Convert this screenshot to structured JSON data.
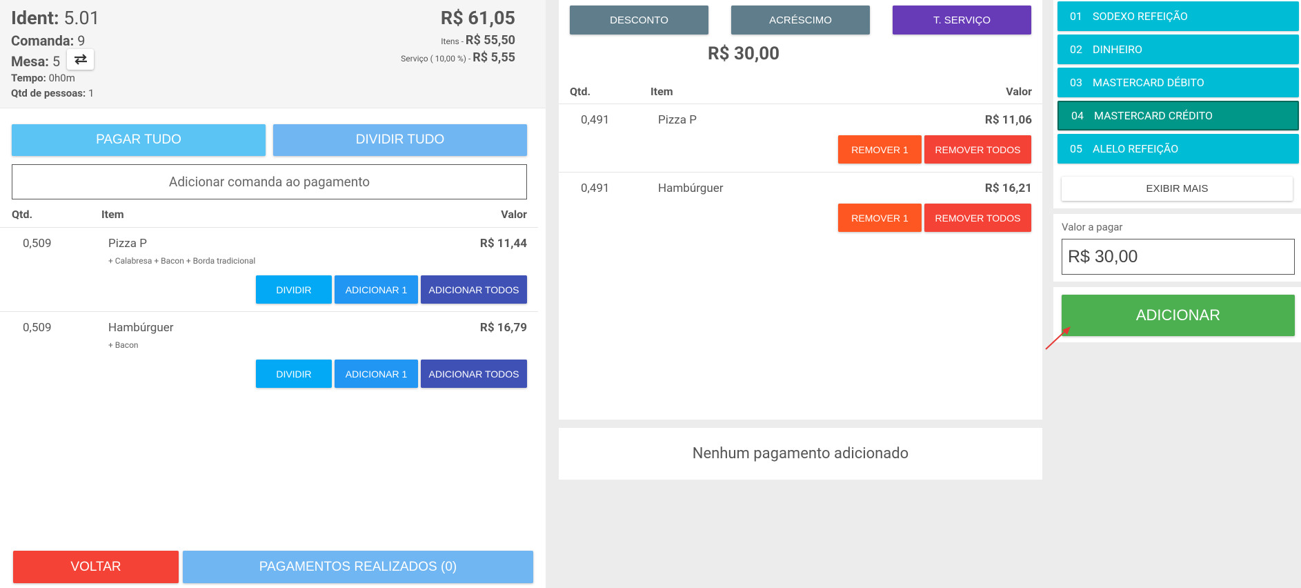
{
  "header": {
    "ident_label": "Ident:",
    "ident_value": "5.01",
    "comanda_label": "Comanda:",
    "comanda_value": "9",
    "mesa_label": "Mesa:",
    "mesa_value": "5",
    "tempo_label": "Tempo:",
    "tempo_value": "0h0m",
    "pessoas_label": "Qtd de pessoas:",
    "pessoas_value": "1",
    "total": "R$ 61,05",
    "itens_label": "Itens - ",
    "itens_value": "R$ 55,50",
    "servico_label": "Serviço ( 10,00 %) - ",
    "servico_value": "R$ 5,55"
  },
  "left": {
    "pagar_tudo": "PAGAR TUDO",
    "dividir_tudo": "DIVIDIR TUDO",
    "add_comanda": "Adicionar comanda ao pagamento",
    "columns": [
      "Qtd.",
      "Item",
      "Valor"
    ],
    "items": [
      {
        "qtd": "0,509",
        "name": "Pizza P",
        "options": "+ Calabresa  + Bacon  + Borda tradicional",
        "value": "R$ 11,44"
      },
      {
        "qtd": "0,509",
        "name": "Hambúrguer",
        "options": "+ Bacon",
        "value": "R$ 16,79"
      }
    ],
    "btn_dividir": "DIVIDIR",
    "btn_adicionar1": "ADICIONAR 1",
    "btn_adicionar_todos": "ADICIONAR TODOS",
    "voltar": "VOLTAR",
    "pagamentos": "PAGAMENTOS REALIZADOS (0)"
  },
  "middle": {
    "desconto": "DESCONTO",
    "acrescimo": "ACRÉSCIMO",
    "tservico": "T. SERVIÇO",
    "total": "R$ 30,00",
    "columns": [
      "Qtd.",
      "Item",
      "Valor"
    ],
    "items": [
      {
        "qtd": "0,491",
        "name": "Pizza P",
        "value": "R$ 11,06"
      },
      {
        "qtd": "0,491",
        "name": "Hambúrguer",
        "value": "R$ 16,21"
      }
    ],
    "btn_remover1": "REMOVER 1",
    "btn_remover_todos": "REMOVER TODOS",
    "nenhum": "Nenhum pagamento adicionado"
  },
  "right": {
    "payment_methods": [
      {
        "num": "01",
        "label": "SODEXO REFEIÇÃO"
      },
      {
        "num": "02",
        "label": "DINHEIRO"
      },
      {
        "num": "03",
        "label": "MASTERCARD DÉBITO"
      },
      {
        "num": "04",
        "label": "MASTERCARD CRÉDITO"
      },
      {
        "num": "05",
        "label": "ALELO REFEIÇÃO"
      }
    ],
    "exibir_mais": "EXIBIR MAIS",
    "valor_label": "Valor a pagar",
    "valor_value": "R$ 30,00",
    "adicionar": "ADICIONAR"
  }
}
